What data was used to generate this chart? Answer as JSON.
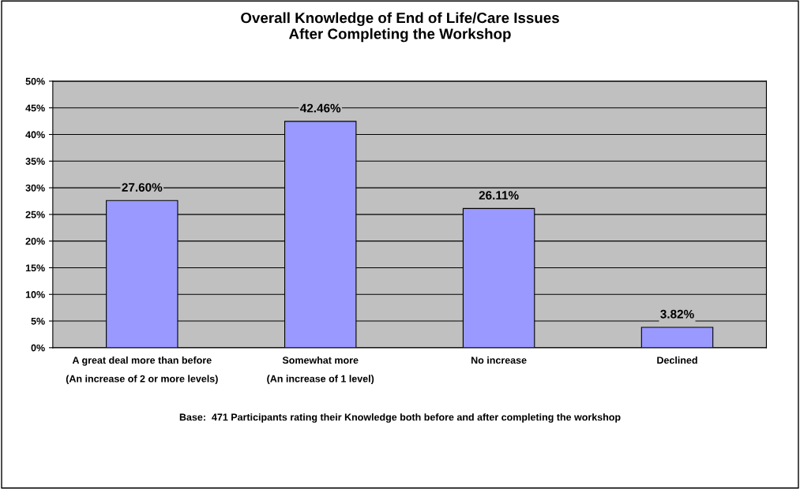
{
  "chart_data": {
    "type": "bar",
    "title": "Overall Knowledge of End of Life/Care Issues\nAfter Completing the Workshop",
    "categories": [
      "A great deal more than before\n(An increase of 2 or more levels)",
      "Somewhat more\n(An increase of 1 level)",
      "No increase",
      "Declined"
    ],
    "values": [
      27.6,
      42.46,
      26.11,
      3.82
    ],
    "value_labels": [
      "27.60%",
      "42.46%",
      "26.11%",
      "3.82%"
    ],
    "color": "#9999ff",
    "ylim": [
      0,
      50
    ],
    "yticks": [
      {
        "value": 0,
        "label": "0%"
      },
      {
        "value": 5,
        "label": "5%"
      },
      {
        "value": 10,
        "label": "10%"
      },
      {
        "value": 15,
        "label": "15%"
      },
      {
        "value": 20,
        "label": "20%"
      },
      {
        "value": 25,
        "label": "25%"
      },
      {
        "value": 30,
        "label": "30%"
      },
      {
        "value": 35,
        "label": "35%"
      },
      {
        "value": 40,
        "label": "40%"
      },
      {
        "value": 45,
        "label": "45%"
      },
      {
        "value": 50,
        "label": "50%"
      }
    ],
    "grid": "y",
    "annotations": [
      "Base:  471 Participants rating their Knowledge both before and after completing the workshop"
    ]
  }
}
